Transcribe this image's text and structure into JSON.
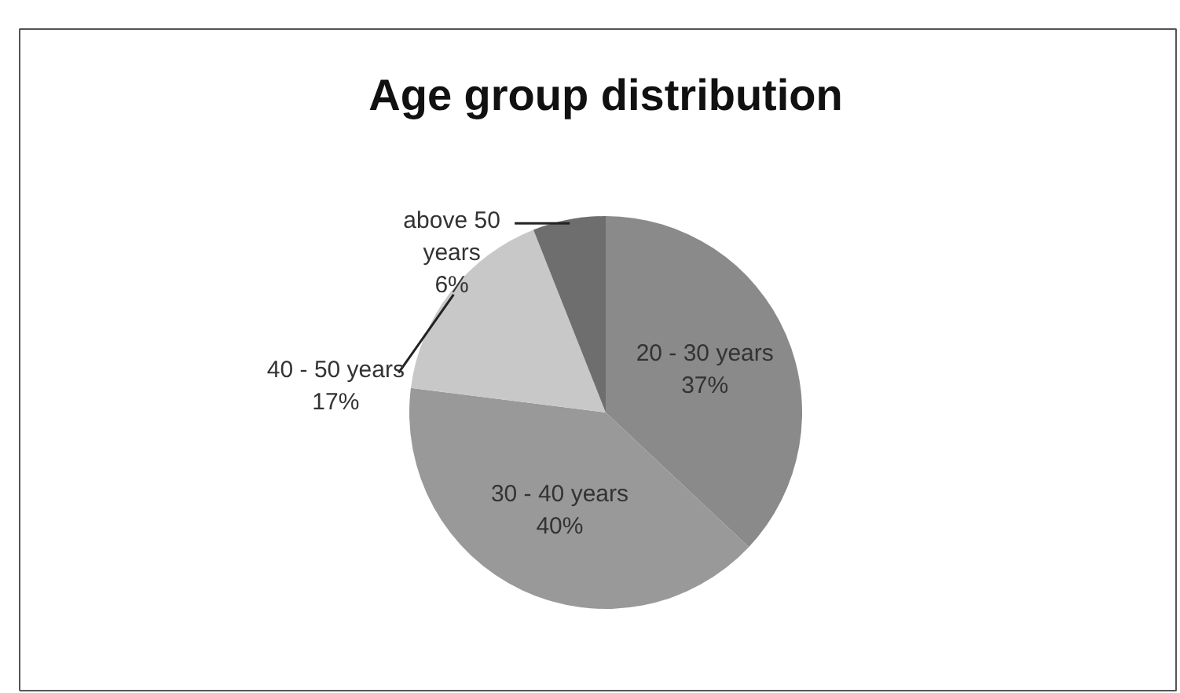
{
  "chart_data": {
    "type": "pie",
    "title": "Age group distribution",
    "categories": [
      "20 - 30 years",
      "30 - 40 years",
      "40 - 50 years",
      "above 50 years"
    ],
    "values": [
      37,
      40,
      17,
      6
    ],
    "value_labels": [
      "37%",
      "40%",
      "17%",
      "6%"
    ],
    "colors": [
      "#8a8a8a",
      "#999999",
      "#c8c8c8",
      "#6e6e6e"
    ]
  }
}
